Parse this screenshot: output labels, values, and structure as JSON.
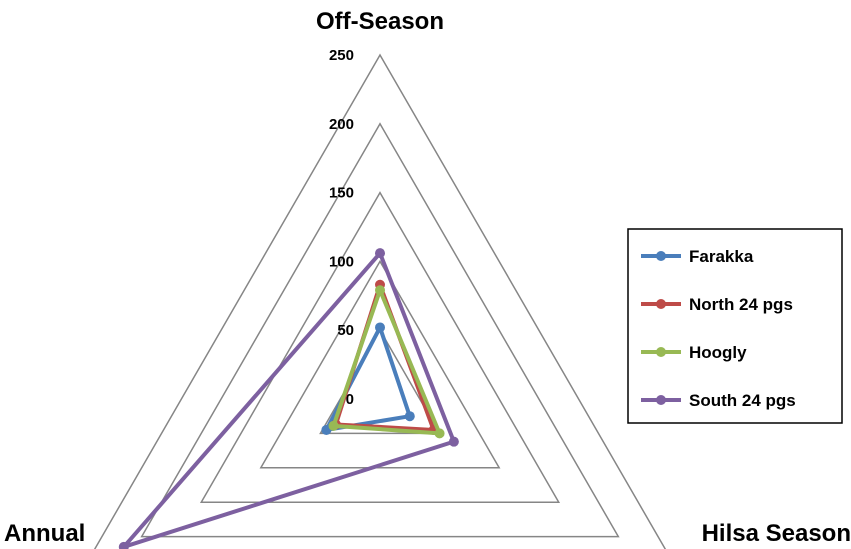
{
  "chart_data": {
    "type": "radar",
    "axes": [
      "Off-Season",
      "Hilsa Season",
      "Annual"
    ],
    "r_ticks": [
      0,
      50,
      100,
      150,
      200,
      250
    ],
    "r_range": [
      0,
      250
    ],
    "grid": true,
    "legend_position": "right",
    "series": [
      {
        "name": "Farakka",
        "color": "#4a7ebb",
        "values": [
          52,
          25,
          45
        ]
      },
      {
        "name": "North 24 pgs",
        "color": "#be4b48",
        "values": [
          83,
          45,
          37
        ]
      },
      {
        "name": "Hoogly",
        "color": "#98b954",
        "values": [
          79,
          50,
          39
        ]
      },
      {
        "name": "South 24 pgs",
        "color": "#7d60a0",
        "values": [
          106,
          62,
          215
        ]
      }
    ]
  }
}
